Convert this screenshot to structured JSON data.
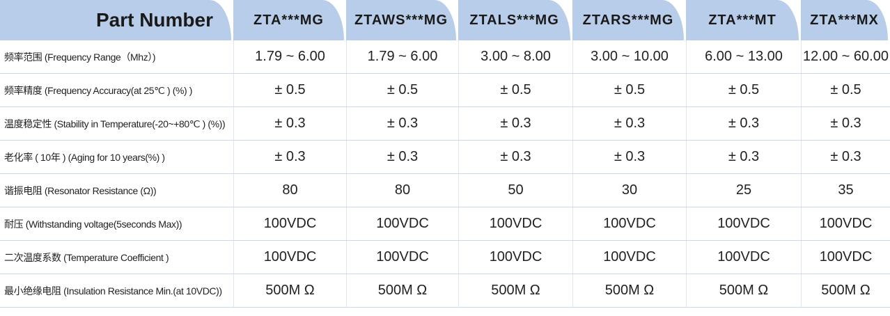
{
  "header": {
    "title": "Part Number",
    "columns": [
      "ZTA***MG",
      "ZTAWS***MG",
      "ZTALS***MG",
      "ZTARS***MG",
      "ZTA***MT",
      "ZTA***MX"
    ]
  },
  "table": {
    "rows": [
      [
        "频率范围 (Frequency Range（Mhz）)",
        "1.79 ~ 6.00",
        "1.79 ~ 6.00",
        "3.00 ~ 8.00",
        "3.00 ~ 10.00",
        "6.00 ~ 13.00",
        "12.00 ~ 60.00"
      ],
      [
        "频率精度 (Frequency Accuracy(at 25℃ ) (%) )",
        "± 0.5",
        "± 0.5",
        "± 0.5",
        "± 0.5",
        "± 0.5",
        "± 0.5"
      ],
      [
        "温度稳定性 (Stability in Temperature(-20~+80℃ ) (%))",
        "± 0.3",
        "± 0.3",
        "± 0.3",
        "± 0.3",
        "± 0.3",
        "± 0.3"
      ],
      [
        "老化率 ( 10年 ) (Aging for 10 years(%) )",
        "± 0.3",
        "± 0.3",
        "± 0.3",
        "± 0.3",
        "± 0.3",
        "± 0.3"
      ],
      [
        "谐振电阻 (Resonator Resistance (Ω))",
        "80",
        "80",
        "50",
        "30",
        "25",
        "35"
      ],
      [
        "耐压 (Withstanding voltage(5seconds Max))",
        "100VDC",
        "100VDC",
        "100VDC",
        "100VDC",
        "100VDC",
        "100VDC"
      ],
      [
        "二次温度系数 (Temperature Coefficient )",
        "100VDC",
        "100VDC",
        "100VDC",
        "100VDC",
        "100VDC",
        "100VDC"
      ],
      [
        "最小绝缘电阻 (Insulation Resistance Min.(at 10VDC))",
        "500M Ω",
        "500M Ω",
        "500M Ω",
        "500M Ω",
        "500M Ω",
        "500M Ω"
      ]
    ]
  }
}
